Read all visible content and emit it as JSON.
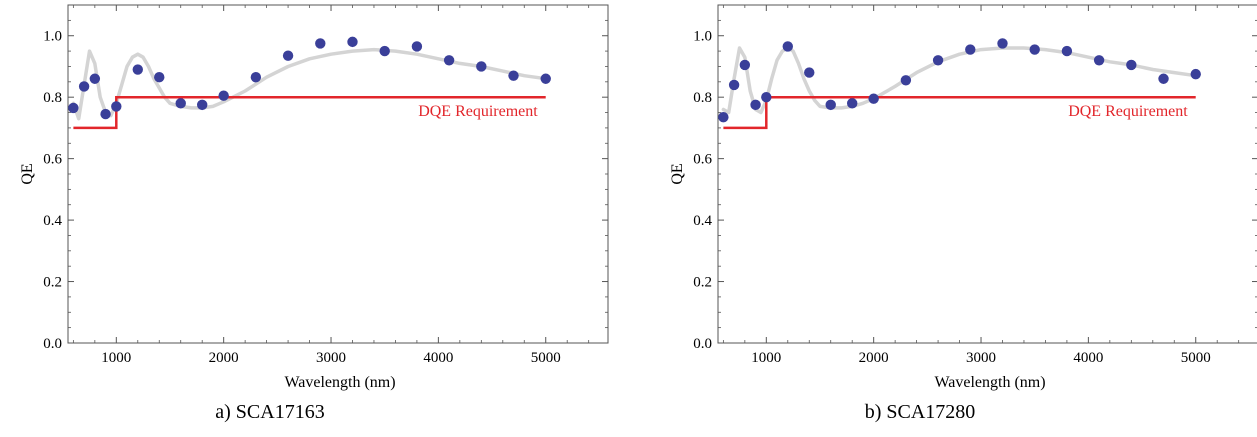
{
  "chart_data": [
    {
      "type": "scatter",
      "caption": "a) SCA17163",
      "xlabel": "Wavelength (nm)",
      "ylabel": "QE",
      "xlim": [
        550,
        5580
      ],
      "ylim": [
        0,
        1.1
      ],
      "xticks": [
        1000,
        2000,
        3000,
        4000,
        5000
      ],
      "yticks": [
        0.0,
        0.2,
        0.4,
        0.6,
        0.8,
        1.0
      ],
      "ytick_labels": [
        "0.0",
        "0.2",
        "0.4",
        "0.6",
        "0.8",
        "1.0"
      ],
      "frame": "boxed",
      "series": [
        {
          "role": "measured",
          "color": "#3a3f99",
          "x": [
            600,
            700,
            800,
            900,
            1000,
            1200,
            1400,
            1600,
            1800,
            2000,
            2300,
            2600,
            2900,
            3200,
            3500,
            3800,
            4100,
            4400,
            4700,
            5000
          ],
          "y": [
            0.765,
            0.835,
            0.86,
            0.745,
            0.77,
            0.89,
            0.865,
            0.78,
            0.775,
            0.805,
            0.865,
            0.935,
            0.975,
            0.98,
            0.95,
            0.965,
            0.92,
            0.9,
            0.87,
            0.86
          ]
        },
        {
          "role": "fit",
          "color": "#d4d4d4",
          "x": [
            600,
            650,
            700,
            750,
            800,
            850,
            900,
            950,
            1000,
            1050,
            1100,
            1150,
            1200,
            1250,
            1300,
            1350,
            1400,
            1450,
            1500,
            1600,
            1700,
            1800,
            1900,
            2000,
            2200,
            2400,
            2600,
            2800,
            3000,
            3200,
            3400,
            3600,
            3800,
            4000,
            4200,
            4400,
            4600,
            4800,
            5000
          ],
          "y": [
            0.78,
            0.73,
            0.84,
            0.95,
            0.91,
            0.8,
            0.75,
            0.74,
            0.78,
            0.84,
            0.9,
            0.93,
            0.94,
            0.93,
            0.9,
            0.86,
            0.83,
            0.8,
            0.78,
            0.77,
            0.765,
            0.765,
            0.77,
            0.785,
            0.82,
            0.865,
            0.9,
            0.925,
            0.94,
            0.95,
            0.955,
            0.95,
            0.94,
            0.925,
            0.91,
            0.9,
            0.885,
            0.87,
            0.86
          ]
        },
        {
          "role": "requirement",
          "name": "DQE Requirement",
          "color": "#e2262b",
          "x": [
            600,
            1000,
            1000,
            5000
          ],
          "y": [
            0.7,
            0.7,
            0.8,
            0.8
          ]
        }
      ]
    },
    {
      "type": "scatter",
      "caption": "b) SCA17280",
      "xlabel": "Wavelength (nm)",
      "ylabel": "QE",
      "xlim": [
        550,
        5580
      ],
      "ylim": [
        0,
        1.1
      ],
      "xticks": [
        1000,
        2000,
        3000,
        4000,
        5000
      ],
      "yticks": [
        0.0,
        0.2,
        0.4,
        0.6,
        0.8,
        1.0
      ],
      "ytick_labels": [
        "0.0",
        "0.2",
        "0.4",
        "0.6",
        "0.8",
        "1.0"
      ],
      "frame": "boxed",
      "series": [
        {
          "role": "measured",
          "color": "#3a3f99",
          "x": [
            600,
            700,
            800,
            900,
            1000,
            1200,
            1400,
            1600,
            1800,
            2000,
            2300,
            2600,
            2900,
            3200,
            3500,
            3800,
            4100,
            4400,
            4700,
            5000
          ],
          "y": [
            0.735,
            0.84,
            0.905,
            0.775,
            0.8,
            0.965,
            0.88,
            0.775,
            0.78,
            0.795,
            0.855,
            0.92,
            0.955,
            0.975,
            0.955,
            0.95,
            0.92,
            0.905,
            0.86,
            0.875
          ]
        },
        {
          "role": "fit",
          "color": "#d4d4d4",
          "x": [
            600,
            650,
            700,
            750,
            800,
            850,
            900,
            950,
            1000,
            1050,
            1100,
            1150,
            1200,
            1250,
            1300,
            1350,
            1400,
            1450,
            1500,
            1600,
            1700,
            1800,
            1900,
            2000,
            2200,
            2400,
            2600,
            2800,
            3000,
            3200,
            3400,
            3600,
            3800,
            4000,
            4200,
            4400,
            4600,
            4800,
            5000
          ],
          "y": [
            0.76,
            0.75,
            0.86,
            0.96,
            0.93,
            0.82,
            0.76,
            0.75,
            0.79,
            0.86,
            0.92,
            0.95,
            0.96,
            0.95,
            0.91,
            0.86,
            0.82,
            0.79,
            0.77,
            0.765,
            0.765,
            0.77,
            0.78,
            0.795,
            0.835,
            0.88,
            0.915,
            0.94,
            0.955,
            0.96,
            0.96,
            0.955,
            0.945,
            0.93,
            0.915,
            0.905,
            0.89,
            0.88,
            0.87
          ]
        },
        {
          "role": "requirement",
          "name": "DQE Requirement",
          "color": "#e2262b",
          "x": [
            600,
            1000,
            1000,
            5000
          ],
          "y": [
            0.7,
            0.7,
            0.8,
            0.8
          ]
        }
      ]
    }
  ]
}
